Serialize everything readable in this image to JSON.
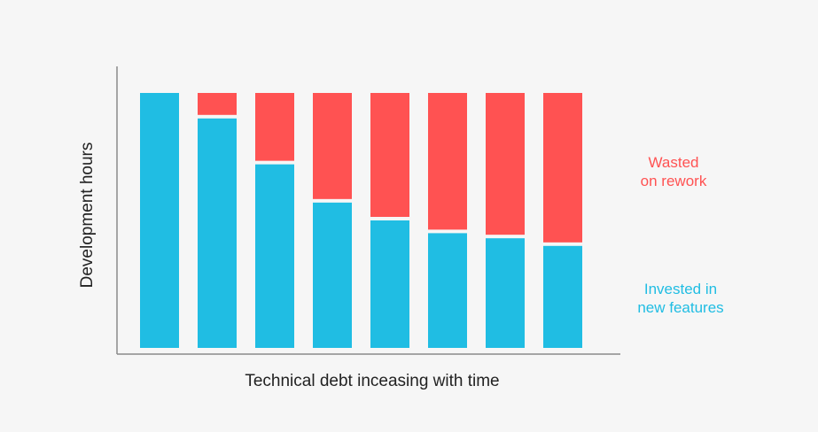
{
  "chart_data": {
    "type": "bar",
    "stacked": true,
    "title": "",
    "xlabel": "Technical debt inceasing with time",
    "ylabel": "Development hours",
    "categories": [
      "",
      "",
      "",
      "",
      "",
      "",
      "",
      ""
    ],
    "ylim": [
      0,
      100
    ],
    "grid": false,
    "series": [
      {
        "name": "Invested in new features",
        "color": "#20bde3",
        "values": [
          100,
          90,
          72,
          57,
          50,
          45,
          43,
          40
        ]
      },
      {
        "name": "Wasted on rework",
        "color": "#ff5252",
        "values": [
          0,
          10,
          28,
          43,
          50,
          55,
          57,
          60
        ]
      }
    ],
    "legend": {
      "placement": "right",
      "entries": [
        {
          "series": 1,
          "lines": [
            "Wasted",
            "on rework"
          ]
        },
        {
          "series": 0,
          "lines": [
            "Invested in",
            "new features"
          ]
        }
      ]
    }
  }
}
